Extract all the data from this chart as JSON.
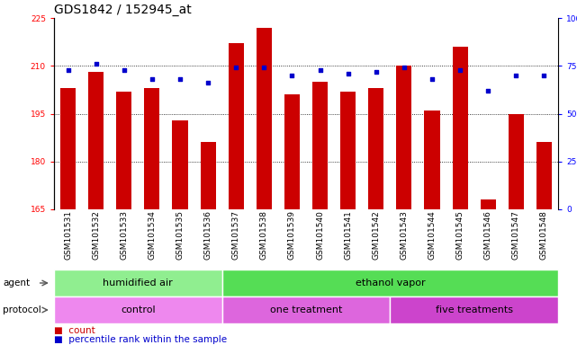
{
  "title": "GDS1842 / 152945_at",
  "samples": [
    "GSM101531",
    "GSM101532",
    "GSM101533",
    "GSM101534",
    "GSM101535",
    "GSM101536",
    "GSM101537",
    "GSM101538",
    "GSM101539",
    "GSM101540",
    "GSM101541",
    "GSM101542",
    "GSM101543",
    "GSM101544",
    "GSM101545",
    "GSM101546",
    "GSM101547",
    "GSM101548"
  ],
  "counts": [
    203,
    208,
    202,
    203,
    193,
    186,
    217,
    222,
    201,
    205,
    202,
    203,
    210,
    196,
    216,
    168,
    195,
    186
  ],
  "percentile_ranks": [
    73,
    76,
    73,
    68,
    68,
    66,
    74,
    74,
    70,
    73,
    71,
    72,
    74,
    68,
    73,
    62,
    70,
    70
  ],
  "ylim_left": [
    165,
    225
  ],
  "ylim_right": [
    0,
    100
  ],
  "yticks_left": [
    165,
    180,
    195,
    210,
    225
  ],
  "yticks_right": [
    0,
    25,
    50,
    75,
    100
  ],
  "bar_color": "#CC0000",
  "dot_color": "#0000CC",
  "agent_groups": [
    {
      "label": "humidified air",
      "start": 0,
      "end": 6,
      "color": "#90EE90"
    },
    {
      "label": "ethanol vapor",
      "start": 6,
      "end": 18,
      "color": "#55DD55"
    }
  ],
  "protocol_groups": [
    {
      "label": "control",
      "start": 0,
      "end": 6,
      "color": "#EE88EE"
    },
    {
      "label": "one treatment",
      "start": 6,
      "end": 12,
      "color": "#DD66DD"
    },
    {
      "label": "five treatments",
      "start": 12,
      "end": 18,
      "color": "#CC44CC"
    }
  ],
  "legend_count_label": "count",
  "legend_pct_label": "percentile rank within the sample",
  "agent_label": "agent",
  "protocol_label": "protocol",
  "title_fontsize": 10,
  "tick_fontsize": 6.5,
  "label_fontsize": 7.5,
  "row_label_fontsize": 7.5,
  "group_label_fontsize": 8
}
